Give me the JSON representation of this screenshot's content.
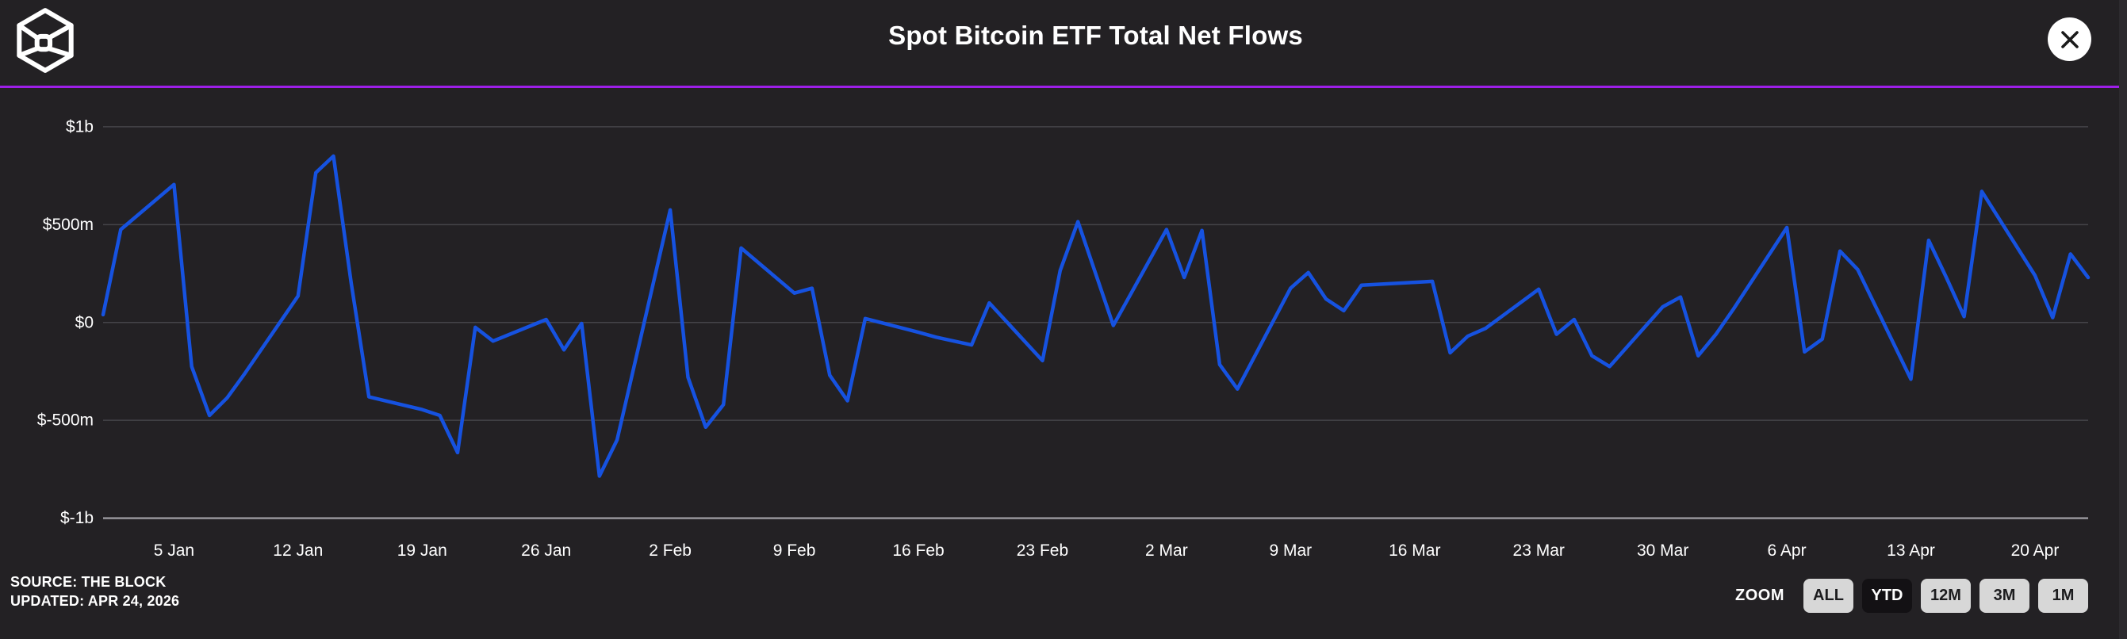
{
  "header": {
    "title": "Spot Bitcoin ETF Total Net Flows",
    "logo": "the-block-logo"
  },
  "footer": {
    "source": "SOURCE: THE BLOCK",
    "updated": "UPDATED: APR 24, 2026"
  },
  "zoom_controls": {
    "label": "ZOOM",
    "buttons": [
      {
        "label": "ALL",
        "active": false
      },
      {
        "label": "YTD",
        "active": true
      },
      {
        "label": "12M",
        "active": false
      },
      {
        "label": "3M",
        "active": false
      },
      {
        "label": "1M",
        "active": false
      }
    ]
  },
  "colors": {
    "background": "#232124",
    "accent_purple": "#9d1fe8",
    "line_blue": "#1652e0",
    "gridline": "#454449",
    "axis_line": "#96959a"
  },
  "chart_data": {
    "type": "line",
    "title": "Spot Bitcoin ETF Total Net Flows",
    "unit": "USD millions (net flow per trading day)",
    "ylim": [
      -1000,
      1000
    ],
    "grid": true,
    "legend": false,
    "y_ticks": [
      {
        "label": "$1b",
        "value": 1000
      },
      {
        "label": "$500m",
        "value": 500
      },
      {
        "label": "$0",
        "value": 0
      },
      {
        "label": "$-500m",
        "value": -500
      },
      {
        "label": "$-1b",
        "value": -1000
      }
    ],
    "x_ticks": [
      {
        "label": "5 Jan",
        "date": "Jan 5"
      },
      {
        "label": "12 Jan",
        "date": "Jan 12"
      },
      {
        "label": "19 Jan",
        "date": "Jan 19"
      },
      {
        "label": "26 Jan",
        "date": "Jan 26"
      },
      {
        "label": "2 Feb",
        "date": "Feb 2"
      },
      {
        "label": "9 Feb",
        "date": "Feb 9"
      },
      {
        "label": "16 Feb",
        "date": "Feb 16"
      },
      {
        "label": "23 Feb",
        "date": "Feb 23"
      },
      {
        "label": "2 Mar",
        "date": "Mar 2"
      },
      {
        "label": "9 Mar",
        "date": "Mar 9"
      },
      {
        "label": "16 Mar",
        "date": "Mar 16"
      },
      {
        "label": "23 Mar",
        "date": "Mar 23"
      },
      {
        "label": "30 Mar",
        "date": "Mar 30"
      },
      {
        "label": "6 Apr",
        "date": "Apr 6"
      },
      {
        "label": "13 Apr",
        "date": "Apr 13"
      },
      {
        "label": "20 Apr",
        "date": "Apr 20"
      }
    ],
    "series": [
      {
        "date": "Jan 1",
        "value": 40
      },
      {
        "date": "Jan 2",
        "value": 475
      },
      {
        "date": "Jan 5",
        "value": 705
      },
      {
        "date": "Jan 6",
        "value": -225
      },
      {
        "date": "Jan 7",
        "value": -475
      },
      {
        "date": "Jan 8",
        "value": -385
      },
      {
        "date": "Jan 9",
        "value": -260
      },
      {
        "date": "Jan 12",
        "value": 135
      },
      {
        "date": "Jan 13",
        "value": 765
      },
      {
        "date": "Jan 14",
        "value": 850
      },
      {
        "date": "Jan 15",
        "value": 200
      },
      {
        "date": "Jan 16",
        "value": -380
      },
      {
        "date": "Jan 19",
        "value": -445
      },
      {
        "date": "Jan 20",
        "value": -475
      },
      {
        "date": "Jan 21",
        "value": -665
      },
      {
        "date": "Jan 22",
        "value": -25
      },
      {
        "date": "Jan 23",
        "value": -95
      },
      {
        "date": "Jan 26",
        "value": 15
      },
      {
        "date": "Jan 27",
        "value": -140
      },
      {
        "date": "Jan 28",
        "value": -5
      },
      {
        "date": "Jan 29",
        "value": -785
      },
      {
        "date": "Jan 30",
        "value": -600
      },
      {
        "date": "Feb 2",
        "value": 575
      },
      {
        "date": "Feb 3",
        "value": -280
      },
      {
        "date": "Feb 4",
        "value": -535
      },
      {
        "date": "Feb 5",
        "value": -420
      },
      {
        "date": "Feb 6",
        "value": 380
      },
      {
        "date": "Feb 9",
        "value": 150
      },
      {
        "date": "Feb 10",
        "value": 175
      },
      {
        "date": "Feb 11",
        "value": -270
      },
      {
        "date": "Feb 12",
        "value": -400
      },
      {
        "date": "Feb 13",
        "value": 20
      },
      {
        "date": "Feb 16",
        "value": -50
      },
      {
        "date": "Feb 17",
        "value": -75
      },
      {
        "date": "Feb 18",
        "value": -95
      },
      {
        "date": "Feb 19",
        "value": -115
      },
      {
        "date": "Feb 20",
        "value": 100
      },
      {
        "date": "Feb 23",
        "value": -195
      },
      {
        "date": "Feb 24",
        "value": 265
      },
      {
        "date": "Feb 25",
        "value": 515
      },
      {
        "date": "Feb 26",
        "value": 250
      },
      {
        "date": "Feb 27",
        "value": -15
      },
      {
        "date": "Mar 2",
        "value": 475
      },
      {
        "date": "Mar 3",
        "value": 230
      },
      {
        "date": "Mar 4",
        "value": 470
      },
      {
        "date": "Mar 5",
        "value": -215
      },
      {
        "date": "Mar 6",
        "value": -340
      },
      {
        "date": "Mar 9",
        "value": 175
      },
      {
        "date": "Mar 10",
        "value": 255
      },
      {
        "date": "Mar 11",
        "value": 120
      },
      {
        "date": "Mar 12",
        "value": 60
      },
      {
        "date": "Mar 13",
        "value": 190
      },
      {
        "date": "Mar 16",
        "value": 205
      },
      {
        "date": "Mar 17",
        "value": 210
      },
      {
        "date": "Mar 18",
        "value": -155
      },
      {
        "date": "Mar 19",
        "value": -70
      },
      {
        "date": "Mar 20",
        "value": -30
      },
      {
        "date": "Mar 23",
        "value": 170
      },
      {
        "date": "Mar 24",
        "value": -60
      },
      {
        "date": "Mar 25",
        "value": 15
      },
      {
        "date": "Mar 26",
        "value": -170
      },
      {
        "date": "Mar 27",
        "value": -225
      },
      {
        "date": "Mar 30",
        "value": 80
      },
      {
        "date": "Mar 31",
        "value": 130
      },
      {
        "date": "Apr 1",
        "value": -170
      },
      {
        "date": "Apr 2",
        "value": -60
      },
      {
        "date": "Apr 3",
        "value": 70
      },
      {
        "date": "Apr 6",
        "value": 485
      },
      {
        "date": "Apr 7",
        "value": -150
      },
      {
        "date": "Apr 8",
        "value": -85
      },
      {
        "date": "Apr 9",
        "value": 365
      },
      {
        "date": "Apr 10",
        "value": 270
      },
      {
        "date": "Apr 13",
        "value": -290
      },
      {
        "date": "Apr 14",
        "value": 420
      },
      {
        "date": "Apr 15",
        "value": 230
      },
      {
        "date": "Apr 16",
        "value": 30
      },
      {
        "date": "Apr 17",
        "value": 670
      },
      {
        "date": "Apr 20",
        "value": 240
      },
      {
        "date": "Apr 21",
        "value": 25
      },
      {
        "date": "Apr 22",
        "value": 350
      },
      {
        "date": "Apr 23",
        "value": 230
      }
    ]
  }
}
